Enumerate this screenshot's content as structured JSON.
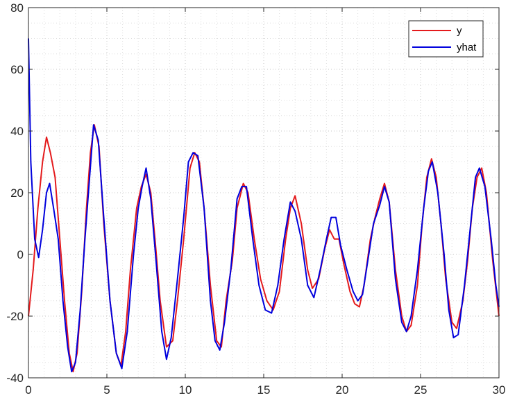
{
  "chart_data": {
    "type": "line",
    "title": "",
    "xlabel": "",
    "ylabel": "",
    "xlim": [
      0,
      30
    ],
    "ylim": [
      -40,
      80
    ],
    "xticks": [
      0,
      5,
      10,
      15,
      20,
      25,
      30
    ],
    "yticks": [
      -40,
      -20,
      0,
      20,
      40,
      60,
      80
    ],
    "x_minor_step": 1,
    "y_minor_step": 5,
    "grid": "major and minor, dotted",
    "legend_position": "top-right",
    "series": [
      {
        "name": "y",
        "color": "#e41a1c",
        "points": [
          [
            0,
            -20
          ],
          [
            0.3,
            -5
          ],
          [
            0.6,
            15
          ],
          [
            0.9,
            30
          ],
          [
            1.15,
            38
          ],
          [
            1.4,
            33
          ],
          [
            1.7,
            25
          ],
          [
            2.0,
            5
          ],
          [
            2.3,
            -15
          ],
          [
            2.6,
            -32
          ],
          [
            2.85,
            -38
          ],
          [
            3.1,
            -32
          ],
          [
            3.4,
            -12
          ],
          [
            3.7,
            15
          ],
          [
            3.95,
            33
          ],
          [
            4.2,
            42
          ],
          [
            4.5,
            35
          ],
          [
            4.8,
            10
          ],
          [
            5.2,
            -15
          ],
          [
            5.6,
            -32
          ],
          [
            5.9,
            -36
          ],
          [
            6.2,
            -25
          ],
          [
            6.5,
            -5
          ],
          [
            6.9,
            15
          ],
          [
            7.2,
            22
          ],
          [
            7.5,
            26
          ],
          [
            7.8,
            20
          ],
          [
            8.1,
            3
          ],
          [
            8.4,
            -15
          ],
          [
            8.8,
            -30
          ],
          [
            9.2,
            -28
          ],
          [
            9.5,
            -15
          ],
          [
            9.9,
            5
          ],
          [
            10.3,
            28
          ],
          [
            10.6,
            33
          ],
          [
            10.9,
            30
          ],
          [
            11.2,
            15
          ],
          [
            11.6,
            -10
          ],
          [
            12.0,
            -28
          ],
          [
            12.3,
            -30
          ],
          [
            12.6,
            -15
          ],
          [
            13.0,
            -2
          ],
          [
            13.3,
            15
          ],
          [
            13.7,
            23
          ],
          [
            14.0,
            20
          ],
          [
            14.4,
            5
          ],
          [
            14.8,
            -8
          ],
          [
            15.2,
            -15
          ],
          [
            15.6,
            -18
          ],
          [
            16.0,
            -12
          ],
          [
            16.4,
            5
          ],
          [
            16.7,
            15
          ],
          [
            17.0,
            19
          ],
          [
            17.4,
            10
          ],
          [
            17.8,
            -5
          ],
          [
            18.1,
            -11
          ],
          [
            18.5,
            -8
          ],
          [
            18.9,
            2
          ],
          [
            19.2,
            8
          ],
          [
            19.5,
            5
          ],
          [
            19.8,
            5
          ],
          [
            20.1,
            -3
          ],
          [
            20.5,
            -12
          ],
          [
            20.8,
            -16
          ],
          [
            21.1,
            -17
          ],
          [
            21.4,
            -10
          ],
          [
            21.8,
            5
          ],
          [
            22.1,
            12
          ],
          [
            22.4,
            18
          ],
          [
            22.7,
            23
          ],
          [
            23.0,
            17
          ],
          [
            23.4,
            -5
          ],
          [
            23.8,
            -20
          ],
          [
            24.1,
            -25
          ],
          [
            24.4,
            -23
          ],
          [
            24.8,
            -10
          ],
          [
            25.1,
            10
          ],
          [
            25.4,
            25
          ],
          [
            25.7,
            31
          ],
          [
            26.0,
            25
          ],
          [
            26.3,
            10
          ],
          [
            26.6,
            -8
          ],
          [
            27.0,
            -22
          ],
          [
            27.3,
            -24
          ],
          [
            27.7,
            -15
          ],
          [
            28.0,
            -2
          ],
          [
            28.3,
            15
          ],
          [
            28.6,
            25
          ],
          [
            28.9,
            28
          ],
          [
            29.2,
            20
          ],
          [
            29.6,
            -2
          ],
          [
            30,
            -20
          ]
        ]
      },
      {
        "name": "yhat",
        "color": "#0000dd",
        "points": [
          [
            0,
            70
          ],
          [
            0.15,
            30
          ],
          [
            0.4,
            5
          ],
          [
            0.65,
            -1
          ],
          [
            0.9,
            8
          ],
          [
            1.15,
            20
          ],
          [
            1.35,
            23
          ],
          [
            1.6,
            15
          ],
          [
            1.9,
            5
          ],
          [
            2.2,
            -15
          ],
          [
            2.5,
            -30
          ],
          [
            2.75,
            -38
          ],
          [
            3.0,
            -35
          ],
          [
            3.3,
            -18
          ],
          [
            3.6,
            5
          ],
          [
            3.9,
            25
          ],
          [
            4.15,
            42
          ],
          [
            4.45,
            37
          ],
          [
            4.8,
            12
          ],
          [
            5.2,
            -15
          ],
          [
            5.6,
            -32
          ],
          [
            5.95,
            -37
          ],
          [
            6.3,
            -25
          ],
          [
            6.7,
            0
          ],
          [
            7.0,
            15
          ],
          [
            7.25,
            22
          ],
          [
            7.5,
            28
          ],
          [
            7.8,
            18
          ],
          [
            8.1,
            0
          ],
          [
            8.5,
            -25
          ],
          [
            8.8,
            -34
          ],
          [
            9.1,
            -27
          ],
          [
            9.5,
            -8
          ],
          [
            9.9,
            12
          ],
          [
            10.2,
            30
          ],
          [
            10.5,
            33
          ],
          [
            10.8,
            32
          ],
          [
            11.2,
            15
          ],
          [
            11.6,
            -15
          ],
          [
            11.9,
            -28
          ],
          [
            12.2,
            -31
          ],
          [
            12.5,
            -22
          ],
          [
            12.9,
            -5
          ],
          [
            13.3,
            18
          ],
          [
            13.6,
            22
          ],
          [
            13.9,
            22
          ],
          [
            14.3,
            5
          ],
          [
            14.7,
            -10
          ],
          [
            15.1,
            -18
          ],
          [
            15.5,
            -19
          ],
          [
            15.9,
            -10
          ],
          [
            16.3,
            5
          ],
          [
            16.7,
            17
          ],
          [
            17.0,
            14
          ],
          [
            17.4,
            5
          ],
          [
            17.8,
            -10
          ],
          [
            18.2,
            -14
          ],
          [
            18.6,
            -5
          ],
          [
            19.0,
            5
          ],
          [
            19.3,
            12
          ],
          [
            19.6,
            12
          ],
          [
            19.9,
            3
          ],
          [
            20.3,
            -5
          ],
          [
            20.7,
            -12
          ],
          [
            21.0,
            -15
          ],
          [
            21.3,
            -13
          ],
          [
            21.7,
            0
          ],
          [
            22.0,
            10
          ],
          [
            22.4,
            16
          ],
          [
            22.7,
            22
          ],
          [
            23.0,
            17
          ],
          [
            23.4,
            -8
          ],
          [
            23.8,
            -22
          ],
          [
            24.1,
            -25
          ],
          [
            24.4,
            -20
          ],
          [
            24.8,
            -5
          ],
          [
            25.2,
            15
          ],
          [
            25.5,
            27
          ],
          [
            25.75,
            30
          ],
          [
            26.1,
            20
          ],
          [
            26.5,
            0
          ],
          [
            26.8,
            -18
          ],
          [
            27.1,
            -27
          ],
          [
            27.4,
            -26
          ],
          [
            27.8,
            -10
          ],
          [
            28.2,
            10
          ],
          [
            28.5,
            25
          ],
          [
            28.75,
            28
          ],
          [
            29.1,
            22
          ],
          [
            29.5,
            5
          ],
          [
            29.8,
            -10
          ],
          [
            30,
            -17
          ]
        ]
      }
    ]
  }
}
